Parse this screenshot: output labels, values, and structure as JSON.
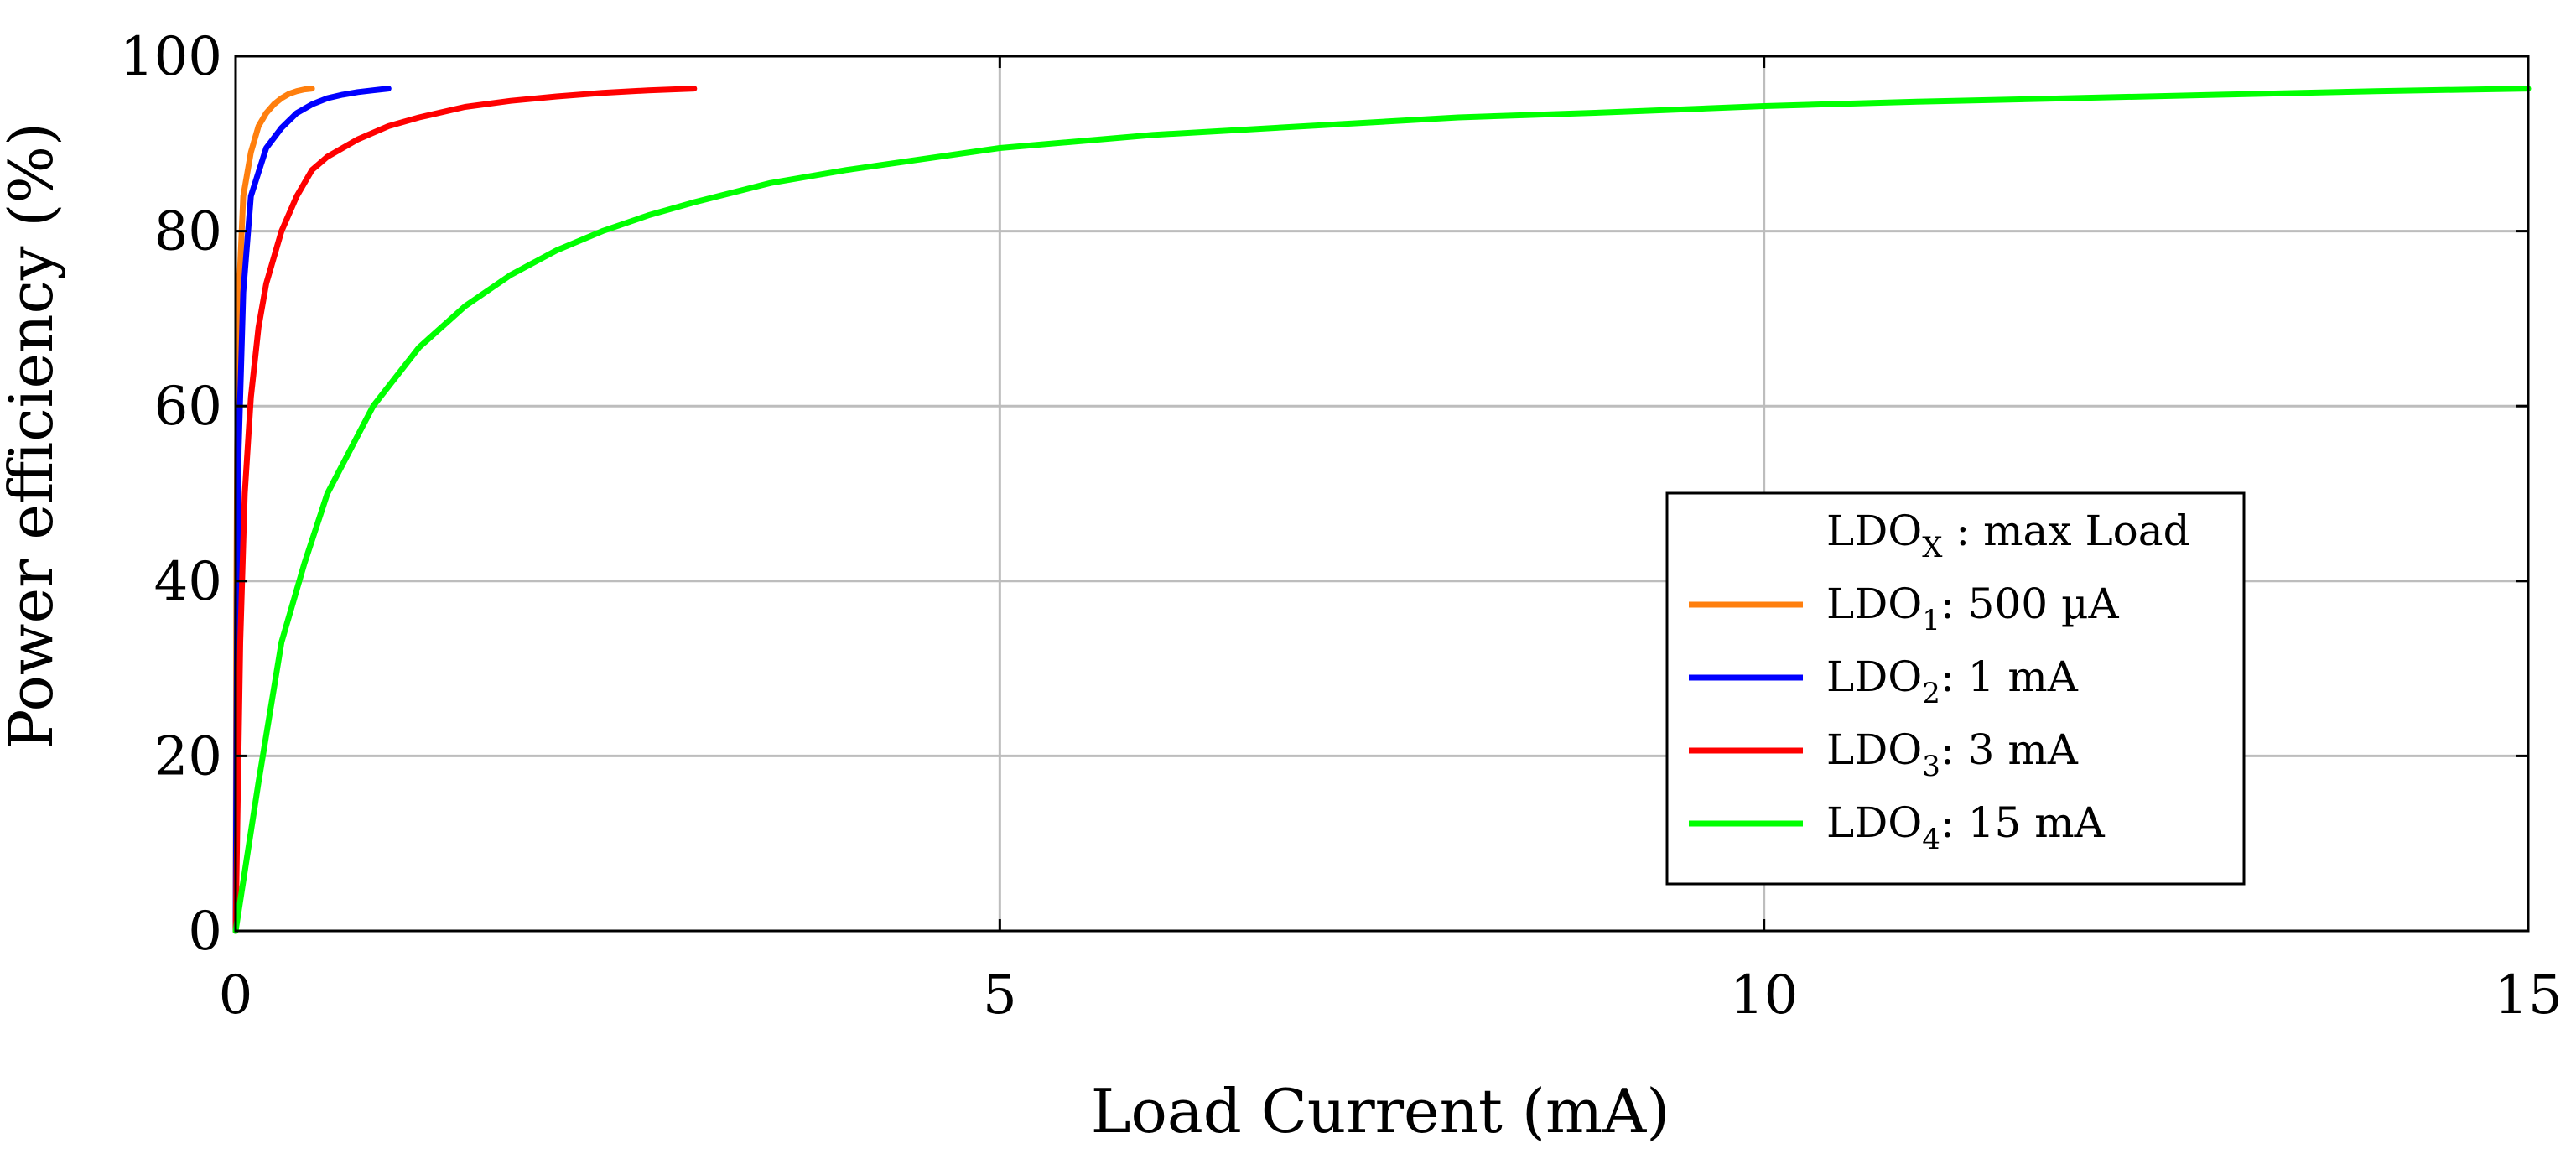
{
  "chart_data": {
    "type": "line",
    "title": "",
    "xlabel": "Load Current (mA)",
    "ylabel": "Power efficiency (%)",
    "xlim": [
      0,
      15
    ],
    "ylim": [
      0,
      100
    ],
    "xticks": [
      0,
      5,
      10,
      15
    ],
    "xtick_labels": [
      "0",
      "5",
      "10",
      "15"
    ],
    "yticks": [
      0,
      20,
      40,
      60,
      80,
      100
    ],
    "ytick_labels": [
      "0",
      "20",
      "40",
      "60",
      "80",
      "100"
    ],
    "grid": true,
    "legend": {
      "position": "right",
      "header": {
        "main": "LDO",
        "sub": "X",
        "rest": " : max Load"
      },
      "entries": [
        {
          "main": "LDO",
          "sub": "1",
          "rest": ": 500 µA"
        },
        {
          "main": "LDO",
          "sub": "2",
          "rest": ": 1 mA"
        },
        {
          "main": "LDO",
          "sub": "3",
          "rest": ": 3 mA"
        },
        {
          "main": "LDO",
          "sub": "4",
          "rest": ": 15 mA"
        }
      ]
    },
    "series": [
      {
        "color": "#ff7f0e",
        "x": [
          0,
          0.005,
          0.01,
          0.02,
          0.05,
          0.1,
          0.15,
          0.2,
          0.25,
          0.3,
          0.35,
          0.4,
          0.45,
          0.5
        ],
        "y": [
          0,
          38,
          55,
          72,
          84,
          89,
          92,
          93.5,
          94.5,
          95.2,
          95.7,
          96,
          96.2,
          96.3
        ]
      },
      {
        "color": "#0000ff",
        "x": [
          0,
          0.01,
          0.02,
          0.05,
          0.1,
          0.2,
          0.3,
          0.4,
          0.5,
          0.6,
          0.7,
          0.8,
          0.9,
          1.0
        ],
        "y": [
          0,
          38,
          55,
          73,
          84,
          89.5,
          91.8,
          93.5,
          94.5,
          95.2,
          95.6,
          95.9,
          96.1,
          96.3
        ]
      },
      {
        "color": "#ff0000",
        "x": [
          0,
          0.03,
          0.06,
          0.1,
          0.15,
          0.2,
          0.3,
          0.4,
          0.5,
          0.6,
          0.8,
          1.0,
          1.2,
          1.5,
          1.8,
          2.1,
          2.4,
          2.7,
          3.0
        ],
        "y": [
          0,
          33,
          50,
          61,
          69,
          74,
          80,
          84,
          87,
          88.5,
          90.5,
          92,
          93,
          94.2,
          94.9,
          95.4,
          95.8,
          96.1,
          96.3
        ]
      },
      {
        "color": "#00ff00",
        "x": [
          0,
          0.15,
          0.3,
          0.45,
          0.6,
          0.9,
          1.2,
          1.5,
          1.8,
          2.1,
          2.4,
          2.7,
          3.0,
          3.5,
          4.0,
          5.0,
          6.0,
          7.0,
          8.0,
          9.0,
          10.0,
          11.0,
          12.0,
          13.0,
          14.0,
          15.0
        ],
        "y": [
          0,
          17,
          33,
          42,
          50,
          60,
          66.7,
          71.4,
          75,
          77.8,
          80,
          81.8,
          83.3,
          85.5,
          87,
          89.5,
          91,
          92,
          93,
          93.6,
          94.3,
          94.8,
          95.2,
          95.6,
          96,
          96.3
        ]
      }
    ]
  }
}
